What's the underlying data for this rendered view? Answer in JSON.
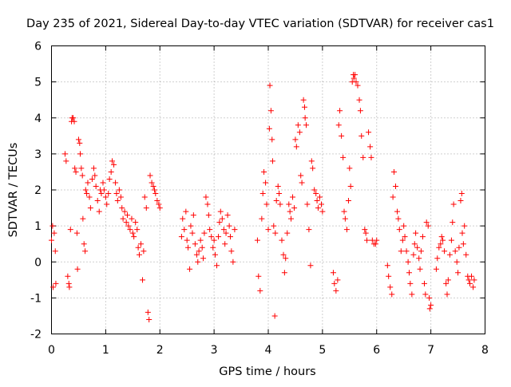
{
  "chart_data": {
    "type": "scatter",
    "title": "Day 235 of 2021, Sidereal Day-to-day VTEC variation (SDTVAR) for receiver cas1",
    "xlabel": "GPS time / hours",
    "ylabel": "SDTVAR / TECUs",
    "xlim": [
      0,
      8
    ],
    "ylim": [
      -2,
      6
    ],
    "xticks": [
      "0",
      "1",
      "2",
      "3",
      "4",
      "5",
      "6",
      "7",
      "8"
    ],
    "yticks": [
      "-2",
      "-1",
      "0",
      "1",
      "2",
      "3",
      "4",
      "5",
      "6"
    ],
    "grid": true,
    "marker": "plus",
    "color": "#ff0000",
    "series": [
      {
        "name": "cas1",
        "points": [
          [
            0.0,
            0.6
          ],
          [
            0.02,
            1.0
          ],
          [
            0.03,
            -0.7
          ],
          [
            0.05,
            0.8
          ],
          [
            0.07,
            0.3
          ],
          [
            0.08,
            -0.6
          ],
          [
            0.25,
            3.0
          ],
          [
            0.27,
            2.8
          ],
          [
            0.3,
            -0.4
          ],
          [
            0.32,
            -0.6
          ],
          [
            0.33,
            -0.7
          ],
          [
            0.35,
            0.9
          ],
          [
            0.37,
            3.9
          ],
          [
            0.38,
            4.0
          ],
          [
            0.4,
            4.0
          ],
          [
            0.42,
            3.9
          ],
          [
            0.43,
            2.6
          ],
          [
            0.45,
            2.5
          ],
          [
            0.47,
            0.8
          ],
          [
            0.48,
            -0.2
          ],
          [
            0.5,
            3.4
          ],
          [
            0.52,
            3.3
          ],
          [
            0.53,
            3.0
          ],
          [
            0.55,
            2.6
          ],
          [
            0.57,
            2.4
          ],
          [
            0.58,
            1.2
          ],
          [
            0.6,
            0.5
          ],
          [
            0.62,
            0.3
          ],
          [
            0.63,
            2.0
          ],
          [
            0.65,
            1.9
          ],
          [
            0.67,
            2.2
          ],
          [
            0.7,
            1.8
          ],
          [
            0.72,
            1.5
          ],
          [
            0.75,
            2.3
          ],
          [
            0.78,
            2.6
          ],
          [
            0.8,
            2.4
          ],
          [
            0.82,
            2.1
          ],
          [
            0.85,
            1.7
          ],
          [
            0.88,
            1.4
          ],
          [
            0.9,
            2.0
          ],
          [
            0.92,
            1.9
          ],
          [
            0.95,
            2.2
          ],
          [
            0.97,
            2.0
          ],
          [
            1.0,
            1.8
          ],
          [
            1.02,
            1.6
          ],
          [
            1.05,
            1.9
          ],
          [
            1.07,
            2.3
          ],
          [
            1.1,
            2.5
          ],
          [
            1.12,
            2.8
          ],
          [
            1.15,
            2.7
          ],
          [
            1.18,
            2.2
          ],
          [
            1.2,
            1.9
          ],
          [
            1.22,
            1.7
          ],
          [
            1.25,
            2.0
          ],
          [
            1.28,
            1.8
          ],
          [
            1.3,
            1.5
          ],
          [
            1.32,
            1.2
          ],
          [
            1.35,
            1.4
          ],
          [
            1.38,
            1.1
          ],
          [
            1.4,
            1.3
          ],
          [
            1.42,
            1.0
          ],
          [
            1.45,
            0.9
          ],
          [
            1.48,
            1.2
          ],
          [
            1.5,
            0.8
          ],
          [
            1.52,
            0.7
          ],
          [
            1.55,
            1.1
          ],
          [
            1.58,
            0.9
          ],
          [
            1.6,
            0.4
          ],
          [
            1.62,
            0.2
          ],
          [
            1.65,
            0.5
          ],
          [
            1.68,
            -0.5
          ],
          [
            1.7,
            0.3
          ],
          [
            1.72,
            1.8
          ],
          [
            1.75,
            1.5
          ],
          [
            1.78,
            -1.4
          ],
          [
            1.8,
            -1.6
          ],
          [
            1.82,
            2.4
          ],
          [
            1.85,
            2.2
          ],
          [
            1.88,
            2.1
          ],
          [
            1.9,
            2.0
          ],
          [
            1.92,
            1.9
          ],
          [
            1.95,
            1.7
          ],
          [
            1.98,
            1.6
          ],
          [
            2.0,
            1.5
          ],
          [
            2.4,
            0.7
          ],
          [
            2.42,
            1.2
          ],
          [
            2.45,
            0.9
          ],
          [
            2.48,
            1.4
          ],
          [
            2.5,
            0.6
          ],
          [
            2.52,
            0.4
          ],
          [
            2.55,
            -0.2
          ],
          [
            2.57,
            1.0
          ],
          [
            2.6,
            0.8
          ],
          [
            2.62,
            1.3
          ],
          [
            2.65,
            0.5
          ],
          [
            2.68,
            0.2
          ],
          [
            2.7,
            0.0
          ],
          [
            2.72,
            0.3
          ],
          [
            2.75,
            0.6
          ],
          [
            2.78,
            0.4
          ],
          [
            2.8,
            0.1
          ],
          [
            2.82,
            0.8
          ],
          [
            2.85,
            1.8
          ],
          [
            2.88,
            1.6
          ],
          [
            2.9,
            1.3
          ],
          [
            2.92,
            0.9
          ],
          [
            2.95,
            0.7
          ],
          [
            2.98,
            0.4
          ],
          [
            3.0,
            0.6
          ],
          [
            3.02,
            0.2
          ],
          [
            3.05,
            -0.1
          ],
          [
            3.08,
            0.7
          ],
          [
            3.1,
            1.1
          ],
          [
            3.12,
            1.4
          ],
          [
            3.15,
            1.2
          ],
          [
            3.18,
            0.9
          ],
          [
            3.2,
            0.5
          ],
          [
            3.22,
            0.8
          ],
          [
            3.25,
            1.3
          ],
          [
            3.28,
            1.0
          ],
          [
            3.3,
            0.7
          ],
          [
            3.32,
            0.3
          ],
          [
            3.35,
            0.0
          ],
          [
            3.38,
            0.9
          ],
          [
            3.8,
            0.6
          ],
          [
            3.82,
            -0.4
          ],
          [
            3.85,
            -0.8
          ],
          [
            3.88,
            1.2
          ],
          [
            3.9,
            1.9
          ],
          [
            3.92,
            2.5
          ],
          [
            3.95,
            2.2
          ],
          [
            3.97,
            1.6
          ],
          [
            4.0,
            0.9
          ],
          [
            4.02,
            3.7
          ],
          [
            4.03,
            4.9
          ],
          [
            4.05,
            4.2
          ],
          [
            4.07,
            3.4
          ],
          [
            4.08,
            2.8
          ],
          [
            4.1,
            1.0
          ],
          [
            4.12,
            -1.5
          ],
          [
            4.13,
            0.8
          ],
          [
            4.15,
            1.7
          ],
          [
            4.18,
            2.1
          ],
          [
            4.2,
            1.9
          ],
          [
            4.22,
            1.6
          ],
          [
            4.25,
            0.6
          ],
          [
            4.28,
            0.2
          ],
          [
            4.3,
            -0.3
          ],
          [
            4.32,
            0.1
          ],
          [
            4.35,
            0.8
          ],
          [
            4.38,
            1.6
          ],
          [
            4.4,
            1.4
          ],
          [
            4.42,
            1.2
          ],
          [
            4.45,
            1.8
          ],
          [
            4.48,
            1.5
          ],
          [
            4.5,
            3.4
          ],
          [
            4.52,
            3.2
          ],
          [
            4.55,
            3.8
          ],
          [
            4.58,
            3.6
          ],
          [
            4.6,
            2.4
          ],
          [
            4.62,
            2.2
          ],
          [
            4.65,
            4.5
          ],
          [
            4.67,
            4.3
          ],
          [
            4.68,
            4.0
          ],
          [
            4.7,
            3.8
          ],
          [
            4.72,
            1.6
          ],
          [
            4.75,
            0.9
          ],
          [
            4.78,
            -0.1
          ],
          [
            4.8,
            2.8
          ],
          [
            4.82,
            2.6
          ],
          [
            4.85,
            2.0
          ],
          [
            4.88,
            1.9
          ],
          [
            4.9,
            1.7
          ],
          [
            4.92,
            1.5
          ],
          [
            4.95,
            1.8
          ],
          [
            4.98,
            1.6
          ],
          [
            5.0,
            1.4
          ],
          [
            5.2,
            -0.3
          ],
          [
            5.22,
            -0.6
          ],
          [
            5.25,
            -0.8
          ],
          [
            5.28,
            -0.5
          ],
          [
            5.3,
            3.8
          ],
          [
            5.32,
            4.2
          ],
          [
            5.35,
            3.5
          ],
          [
            5.38,
            2.9
          ],
          [
            5.4,
            1.4
          ],
          [
            5.42,
            1.2
          ],
          [
            5.45,
            0.9
          ],
          [
            5.48,
            1.7
          ],
          [
            5.5,
            2.6
          ],
          [
            5.52,
            2.1
          ],
          [
            5.55,
            5.0
          ],
          [
            5.57,
            5.2
          ],
          [
            5.58,
            5.1
          ],
          [
            5.6,
            5.2
          ],
          [
            5.62,
            5.0
          ],
          [
            5.65,
            4.9
          ],
          [
            5.68,
            4.5
          ],
          [
            5.7,
            4.2
          ],
          [
            5.72,
            3.5
          ],
          [
            5.75,
            2.9
          ],
          [
            5.78,
            0.9
          ],
          [
            5.8,
            0.8
          ],
          [
            5.82,
            0.6
          ],
          [
            5.85,
            3.6
          ],
          [
            5.88,
            3.2
          ],
          [
            5.9,
            2.9
          ],
          [
            5.92,
            0.6
          ],
          [
            5.95,
            0.5
          ],
          [
            5.98,
            0.5
          ],
          [
            6.0,
            0.6
          ],
          [
            6.2,
            -0.1
          ],
          [
            6.22,
            -0.4
          ],
          [
            6.25,
            -0.7
          ],
          [
            6.28,
            -0.9
          ],
          [
            6.3,
            1.8
          ],
          [
            6.32,
            2.5
          ],
          [
            6.35,
            2.1
          ],
          [
            6.38,
            1.4
          ],
          [
            6.4,
            1.2
          ],
          [
            6.42,
            0.9
          ],
          [
            6.45,
            0.3
          ],
          [
            6.48,
            0.6
          ],
          [
            6.5,
            1.0
          ],
          [
            6.52,
            0.7
          ],
          [
            6.55,
            0.3
          ],
          [
            6.58,
            0.0
          ],
          [
            6.6,
            -0.3
          ],
          [
            6.62,
            -0.6
          ],
          [
            6.65,
            -0.9
          ],
          [
            6.68,
            0.2
          ],
          [
            6.7,
            0.5
          ],
          [
            6.72,
            0.8
          ],
          [
            6.75,
            0.4
          ],
          [
            6.78,
            0.1
          ],
          [
            6.8,
            -0.2
          ],
          [
            6.82,
            0.3
          ],
          [
            6.85,
            0.7
          ],
          [
            6.88,
            -0.6
          ],
          [
            6.9,
            -0.9
          ],
          [
            6.92,
            1.1
          ],
          [
            6.95,
            1.0
          ],
          [
            6.97,
            -1.0
          ],
          [
            6.98,
            -1.3
          ],
          [
            7.0,
            -1.2
          ],
          [
            7.1,
            -0.2
          ],
          [
            7.12,
            0.1
          ],
          [
            7.15,
            0.4
          ],
          [
            7.18,
            0.5
          ],
          [
            7.2,
            0.7
          ],
          [
            7.22,
            0.6
          ],
          [
            7.25,
            0.3
          ],
          [
            7.28,
            -0.6
          ],
          [
            7.3,
            -0.9
          ],
          [
            7.32,
            -0.5
          ],
          [
            7.35,
            0.2
          ],
          [
            7.38,
            0.6
          ],
          [
            7.4,
            1.1
          ],
          [
            7.42,
            1.6
          ],
          [
            7.45,
            0.3
          ],
          [
            7.48,
            0.0
          ],
          [
            7.5,
            -0.3
          ],
          [
            7.52,
            0.4
          ],
          [
            7.55,
            1.7
          ],
          [
            7.57,
            1.9
          ],
          [
            7.58,
            0.8
          ],
          [
            7.6,
            0.5
          ],
          [
            7.62,
            1.0
          ],
          [
            7.65,
            0.2
          ],
          [
            7.68,
            -0.4
          ],
          [
            7.7,
            -0.5
          ],
          [
            7.72,
            -0.6
          ],
          [
            7.75,
            -0.4
          ],
          [
            7.78,
            -0.7
          ],
          [
            7.8,
            -0.5
          ]
        ]
      }
    ]
  }
}
